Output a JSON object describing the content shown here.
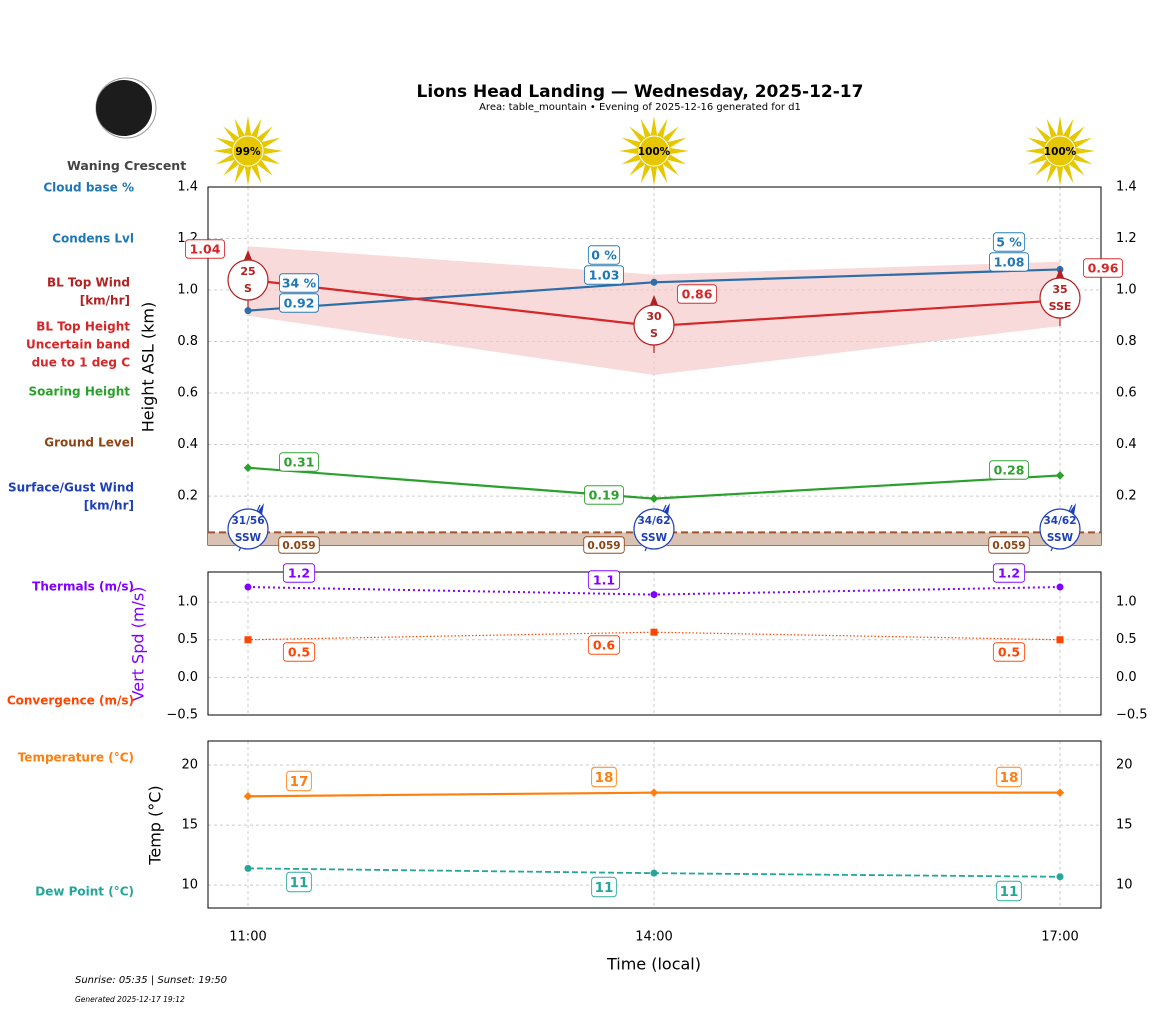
{
  "title": "Lions Head Landing — Wednesday, 2025-12-17",
  "subtitle": "Area: table_mountain • Evening of 2025-12-16 generated for d1",
  "moon_phase": "Waning Crescent",
  "footer": {
    "sun": "Sunrise: 05:35 | Sunset: 19:50",
    "generated": "Generated 2025-12-17 19:12"
  },
  "colors": {
    "cloud": "#1f77b4",
    "condens": "#2c6ea8",
    "bl_wind": "#b22222",
    "bl_top": "#d62728",
    "band": "#f5c6c8",
    "soaring": "#2ca02c",
    "ground": "#8b4513",
    "surface_wind": "#1f3fb4",
    "thermals": "#8000ff",
    "convergence": "#ff4500",
    "temp": "#ff7f0e",
    "dew": "#26a69a",
    "sun": "#e6c700"
  },
  "side_labels": {
    "cloud_base": "Cloud base %",
    "condens": "Condens Lvl",
    "bl_wind": "BL Top Wind\n[km/hr]",
    "bl_top": "BL Top Height\nUncertain band\ndue to 1 deg C",
    "soaring": "Soaring Height",
    "ground": "Ground Level",
    "surface_wind": "Surface/Gust Wind\n[km/hr]",
    "thermals": "Thermals (m/s)",
    "convergence": "Convergence (m/s)",
    "temp": "Temperature (°C)",
    "dew": "Dew Point (°C)"
  },
  "chart_data": [
    {
      "type": "line",
      "ylabel": "Height ASL (km)",
      "ylim": [
        0.01,
        1.4
      ],
      "yticks": [
        "0.2",
        "0.4",
        "0.6",
        "0.8",
        "1.0",
        "1.2",
        "1.4"
      ],
      "grid": true,
      "x": [
        "11:00",
        "14:00",
        "17:00"
      ],
      "sun_percent": [
        "99%",
        "100%",
        "100%"
      ],
      "cloud_base_percent": [
        "34 %",
        "0 %",
        "5 %"
      ],
      "condens_level": [
        0.92,
        1.03,
        1.08
      ],
      "bl_top": [
        1.04,
        0.86,
        0.96
      ],
      "bl_band_upper": [
        1.17,
        1.06,
        1.11
      ],
      "bl_band_lower": [
        0.9,
        0.67,
        0.86
      ],
      "bl_wind": [
        {
          "speed": "25",
          "dir": "S"
        },
        {
          "speed": "30",
          "dir": "S"
        },
        {
          "speed": "35",
          "dir": "SSE"
        }
      ],
      "soaring": [
        0.31,
        0.19,
        0.28
      ],
      "ground": [
        0.059,
        0.059,
        0.059
      ],
      "surface_wind": [
        {
          "speed": "31/56",
          "dir": "SSW"
        },
        {
          "speed": "34/62",
          "dir": "SSW"
        },
        {
          "speed": "34/62",
          "dir": "SSW"
        }
      ]
    },
    {
      "type": "line",
      "ylabel": "Vert Spd (m/s)",
      "ylim": [
        -0.5,
        1.4
      ],
      "yticks": [
        "−0.5",
        "0.0",
        "0.5",
        "1.0"
      ],
      "x": [
        "11:00",
        "14:00",
        "17:00"
      ],
      "series": [
        {
          "name": "Thermals (m/s)",
          "values": [
            1.2,
            1.1,
            1.2
          ]
        },
        {
          "name": "Convergence (m/s)",
          "values": [
            0.5,
            0.6,
            0.5
          ]
        }
      ]
    },
    {
      "type": "line",
      "ylabel": "Temp (°C)",
      "xlabel": "Time (local)",
      "ylim": [
        8.1,
        22
      ],
      "yticks": [
        "10",
        "15",
        "20"
      ],
      "x": [
        "11:00",
        "14:00",
        "17:00"
      ],
      "series": [
        {
          "name": "Temperature (°C)",
          "values": [
            17.4,
            17.7,
            17.7
          ],
          "labels": [
            "17",
            "18",
            "18"
          ]
        },
        {
          "name": "Dew Point (°C)",
          "values": [
            11.4,
            11.0,
            10.7
          ],
          "labels": [
            "11",
            "11",
            "11"
          ]
        }
      ]
    }
  ]
}
